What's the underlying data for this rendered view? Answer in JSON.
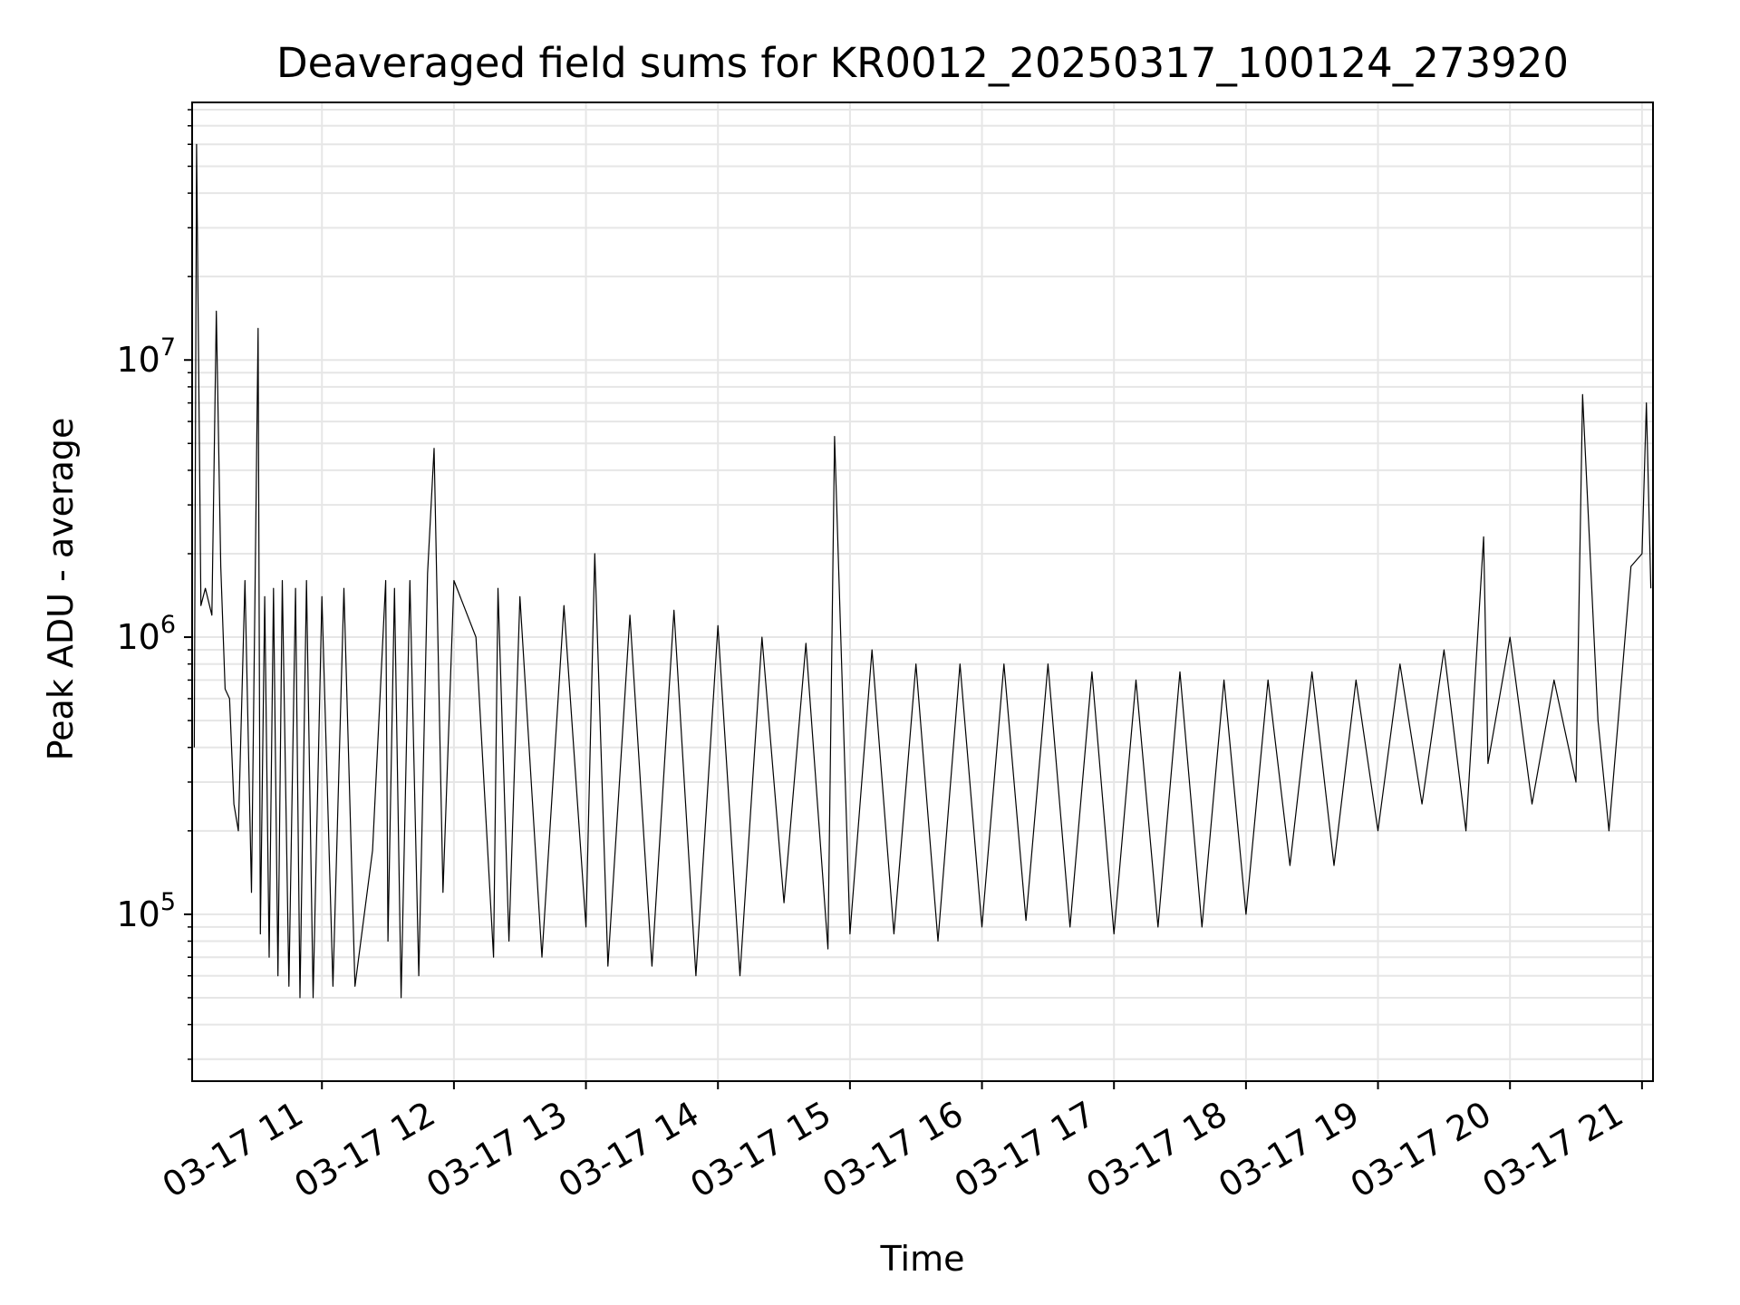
{
  "chart_data": {
    "type": "line",
    "title": "Deaveraged field sums for KR0012_20250317_100124_273920",
    "xlabel": "Time",
    "ylabel": "Peak ADU - average",
    "yscale": "log",
    "ylim": [
      25000,
      85000000
    ],
    "xlim": [
      "2025-03-17 10:01:00",
      "2025-03-17 21:05:00"
    ],
    "grid": true,
    "line_color": "#000000",
    "grid_color": "#e6e6e6",
    "x_ticks": [
      {
        "value": "2025-03-17 11:00",
        "label": "03-17 11"
      },
      {
        "value": "2025-03-17 12:00",
        "label": "03-17 12"
      },
      {
        "value": "2025-03-17 13:00",
        "label": "03-17 13"
      },
      {
        "value": "2025-03-17 14:00",
        "label": "03-17 14"
      },
      {
        "value": "2025-03-17 15:00",
        "label": "03-17 15"
      },
      {
        "value": "2025-03-17 16:00",
        "label": "03-17 16"
      },
      {
        "value": "2025-03-17 17:00",
        "label": "03-17 17"
      },
      {
        "value": "2025-03-17 18:00",
        "label": "03-17 18"
      },
      {
        "value": "2025-03-17 19:00",
        "label": "03-17 19"
      },
      {
        "value": "2025-03-17 20:00",
        "label": "03-17 20"
      },
      {
        "value": "2025-03-17 21:00",
        "label": "03-17 21"
      }
    ],
    "y_ticks": [
      {
        "value": 100000,
        "base": "10",
        "exp": "5"
      },
      {
        "value": 1000000,
        "base": "10",
        "exp": "6"
      },
      {
        "value": 10000000,
        "base": "10",
        "exp": "7"
      }
    ],
    "series": [
      {
        "x": [
          "2025-03-17 10:02",
          "2025-03-17 10:03",
          "2025-03-17 10:05",
          "2025-03-17 10:07",
          "2025-03-17 10:10",
          "2025-03-17 10:12",
          "2025-03-17 10:14",
          "2025-03-17 10:16",
          "2025-03-17 10:18",
          "2025-03-17 10:20",
          "2025-03-17 10:22",
          "2025-03-17 10:25",
          "2025-03-17 10:28",
          "2025-03-17 10:31",
          "2025-03-17 10:32",
          "2025-03-17 10:34",
          "2025-03-17 10:36",
          "2025-03-17 10:38",
          "2025-03-17 10:40",
          "2025-03-17 10:42",
          "2025-03-17 10:45",
          "2025-03-17 10:48",
          "2025-03-17 10:50",
          "2025-03-17 10:53",
          "2025-03-17 10:56",
          "2025-03-17 11:00",
          "2025-03-17 11:05",
          "2025-03-17 11:10",
          "2025-03-17 11:15",
          "2025-03-17 11:23",
          "2025-03-17 11:29",
          "2025-03-17 11:30",
          "2025-03-17 11:33",
          "2025-03-17 11:36",
          "2025-03-17 11:40",
          "2025-03-17 11:44",
          "2025-03-17 11:48",
          "2025-03-17 11:51",
          "2025-03-17 11:55",
          "2025-03-17 12:00",
          "2025-03-17 12:10",
          "2025-03-17 12:18",
          "2025-03-17 12:20",
          "2025-03-17 12:25",
          "2025-03-17 12:30",
          "2025-03-17 12:40",
          "2025-03-17 12:50",
          "2025-03-17 13:00",
          "2025-03-17 13:04",
          "2025-03-17 13:10",
          "2025-03-17 13:20",
          "2025-03-17 13:30",
          "2025-03-17 13:40",
          "2025-03-17 13:50",
          "2025-03-17 14:00",
          "2025-03-17 14:10",
          "2025-03-17 14:20",
          "2025-03-17 14:30",
          "2025-03-17 14:40",
          "2025-03-17 14:50",
          "2025-03-17 14:53",
          "2025-03-17 15:00",
          "2025-03-17 15:10",
          "2025-03-17 15:20",
          "2025-03-17 15:30",
          "2025-03-17 15:40",
          "2025-03-17 15:50",
          "2025-03-17 16:00",
          "2025-03-17 16:10",
          "2025-03-17 16:20",
          "2025-03-17 16:30",
          "2025-03-17 16:40",
          "2025-03-17 16:50",
          "2025-03-17 17:00",
          "2025-03-17 17:10",
          "2025-03-17 17:20",
          "2025-03-17 17:30",
          "2025-03-17 17:40",
          "2025-03-17 17:50",
          "2025-03-17 18:00",
          "2025-03-17 18:10",
          "2025-03-17 18:20",
          "2025-03-17 18:30",
          "2025-03-17 18:40",
          "2025-03-17 18:50",
          "2025-03-17 19:00",
          "2025-03-17 19:10",
          "2025-03-17 19:20",
          "2025-03-17 19:30",
          "2025-03-17 19:40",
          "2025-03-17 19:48",
          "2025-03-17 19:50",
          "2025-03-17 20:00",
          "2025-03-17 20:10",
          "2025-03-17 20:20",
          "2025-03-17 20:30",
          "2025-03-17 20:33",
          "2025-03-17 20:40",
          "2025-03-17 20:45",
          "2025-03-17 20:50",
          "2025-03-17 20:55",
          "2025-03-17 21:00",
          "2025-03-17 21:02",
          "2025-03-17 21:04"
        ],
        "y": [
          400000,
          60000000,
          1300000,
          1500000,
          1200000,
          15000000,
          1800000,
          650000,
          600000,
          250000,
          200000,
          1600000,
          120000,
          13000000,
          85000,
          1400000,
          70000,
          1500000,
          60000,
          1600000,
          55000,
          1500000,
          50000,
          1600000,
          50000,
          1400000,
          55000,
          1500000,
          55000,
          170000,
          1600000,
          80000,
          1500000,
          50000,
          1600000,
          60000,
          1700000,
          4800000,
          120000,
          1600000,
          1000000,
          70000,
          1500000,
          80000,
          1400000,
          70000,
          1300000,
          90000,
          2000000,
          65000,
          1200000,
          65000,
          1250000,
          60000,
          1100000,
          60000,
          1000000,
          110000,
          950000,
          75000,
          5300000,
          85000,
          900000,
          85000,
          800000,
          80000,
          800000,
          90000,
          800000,
          95000,
          800000,
          90000,
          750000,
          85000,
          700000,
          90000,
          750000,
          90000,
          700000,
          100000,
          700000,
          150000,
          750000,
          150000,
          700000,
          200000,
          800000,
          250000,
          900000,
          200000,
          2300000,
          350000,
          1000000,
          250000,
          700000,
          300000,
          7500000,
          500000,
          200000,
          600000,
          1800000,
          2000000,
          7000000,
          1500000
        ]
      }
    ]
  }
}
